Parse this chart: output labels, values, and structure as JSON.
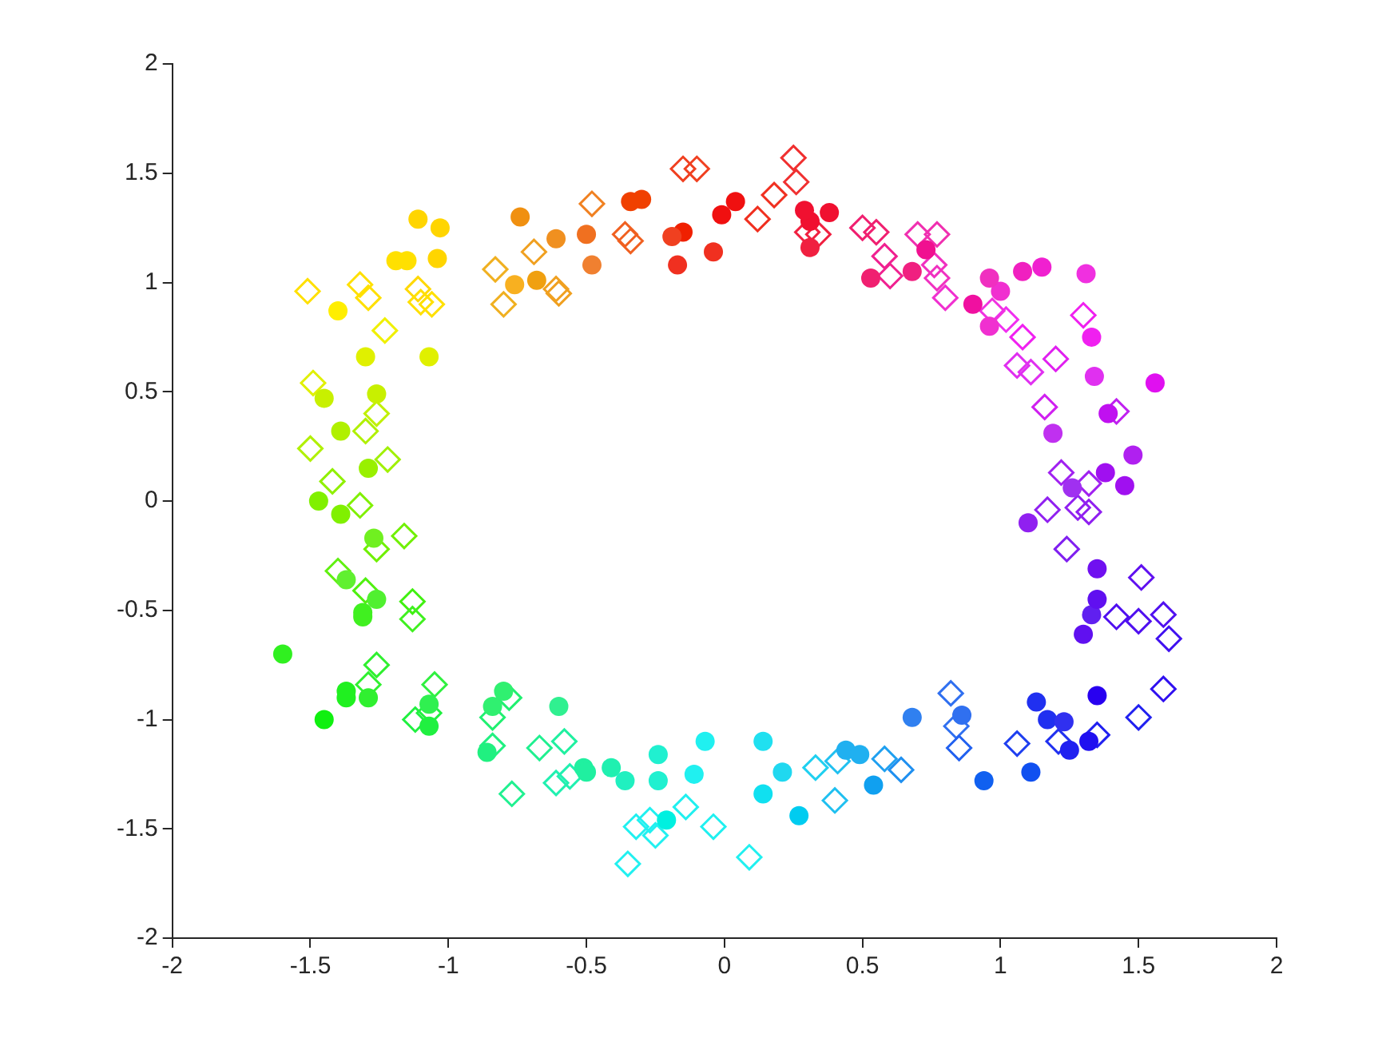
{
  "chart_data": {
    "type": "scatter",
    "xlim": [
      -2,
      2
    ],
    "ylim": [
      -2,
      2
    ],
    "xticks": [
      -2,
      -1.5,
      -1,
      -0.5,
      0,
      0.5,
      1,
      1.5,
      2
    ],
    "yticks": [
      -2,
      -1.5,
      -1,
      -0.5,
      0,
      0.5,
      1,
      1.5,
      2
    ],
    "grid": false,
    "legend": false,
    "series": [
      {
        "marker": "circle",
        "x": [
          -1.11,
          -1.03,
          -1.19,
          -1.15,
          -1.04,
          -1.4,
          -1.3,
          -1.07,
          -1.45,
          -1.26,
          -1.39,
          -1.29,
          -1.47,
          -1.39,
          -1.27,
          -1.37,
          -1.26,
          -1.31,
          -1.31,
          -1.6,
          -1.37,
          -1.37,
          -1.29,
          -1.45,
          -1.07,
          -1.07,
          -0.84,
          -0.8,
          -0.86,
          -0.6,
          -0.51,
          -0.5,
          -0.41,
          -0.36,
          -0.24,
          -0.24,
          -0.07,
          -0.11,
          -0.21,
          0.14,
          0.21,
          0.14,
          0.27,
          0.44,
          0.49,
          0.54,
          0.68,
          0.86,
          0.94,
          1.11,
          1.13,
          1.17,
          1.23,
          1.25,
          1.32,
          1.35,
          1.3,
          1.33,
          1.35,
          1.35,
          1.1,
          1.26,
          1.45,
          1.38,
          1.48,
          1.19,
          1.39,
          1.56,
          1.34,
          1.33,
          1.31,
          1.15,
          1.08,
          0.96,
          1.0,
          0.96,
          0.9,
          0.73,
          0.68,
          0.53,
          0.31,
          0.31,
          0.29,
          0.38,
          0.04,
          -0.01,
          -0.04,
          -0.15,
          -0.19,
          -0.17,
          -0.34,
          -0.3,
          -0.48,
          -0.5,
          -0.61,
          -0.74,
          -0.76,
          -0.68
        ],
        "values": [
          1.29,
          1.25,
          1.1,
          1.1,
          1.11,
          0.87,
          0.66,
          0.66,
          0.47,
          0.49,
          0.32,
          0.15,
          0.0,
          -0.06,
          -0.17,
          -0.36,
          -0.45,
          -0.51,
          -0.53,
          -0.7,
          -0.87,
          -0.9,
          -0.9,
          -1.0,
          -0.93,
          -1.03,
          -0.94,
          -0.87,
          -1.15,
          -0.94,
          -1.22,
          -1.24,
          -1.22,
          -1.28,
          -1.16,
          -1.28,
          -1.1,
          -1.25,
          -1.46,
          -1.1,
          -1.24,
          -1.34,
          -1.44,
          -1.14,
          -1.16,
          -1.3,
          -0.99,
          -0.98,
          -1.28,
          -1.24,
          -0.92,
          -1.0,
          -1.01,
          -1.14,
          -1.1,
          -0.89,
          -0.61,
          -0.52,
          -0.45,
          -0.31,
          -0.1,
          0.06,
          0.07,
          0.13,
          0.21,
          0.31,
          0.4,
          0.54,
          0.57,
          0.75,
          1.04,
          1.07,
          1.05,
          0.8,
          0.96,
          1.02,
          0.9,
          1.15,
          1.05,
          1.02,
          1.16,
          1.28,
          1.33,
          1.32,
          1.37,
          1.31,
          1.14,
          1.23,
          1.21,
          1.08,
          1.37,
          1.38,
          1.08,
          1.22,
          1.2,
          1.3,
          0.99,
          1.01
        ],
        "colors": [
          "#ffd500",
          "#ffd500",
          "#ffe000",
          "#ffe000",
          "#ffd500",
          "#ffee00",
          "#e0f000",
          "#e0f000",
          "#c8f000",
          "#c8f000",
          "#b0f000",
          "#99f000",
          "#80f000",
          "#80f000",
          "#70f020",
          "#60f030",
          "#50f030",
          "#40f020",
          "#40f020",
          "#30f020",
          "#20f020",
          "#20f020",
          "#30f030",
          "#10f010",
          "#30f050",
          "#20f040",
          "#30f070",
          "#30f070",
          "#20f080",
          "#30f090",
          "#20f0a0",
          "#20f0a0",
          "#20f0b0",
          "#20f0c0",
          "#20f0d0",
          "#20f0d0",
          "#20f0f0",
          "#20f0f0",
          "#00f0e0",
          "#20e0f0",
          "#20d8f0",
          "#10e0f0",
          "#00ccf0",
          "#20b0f0",
          "#20b0f0",
          "#10a0f0",
          "#3080f0",
          "#3070f0",
          "#1060f0",
          "#1050f0",
          "#2030f0",
          "#2030f0",
          "#3030f0",
          "#2020f0",
          "#2010f0",
          "#2800f0",
          "#6010f0",
          "#6020f0",
          "#6010f0",
          "#7010f0",
          "#9020f0",
          "#a030f0",
          "#a010f0",
          "#a010f0",
          "#b020f0",
          "#c030f0",
          "#c010f0",
          "#e010f0",
          "#e030f0",
          "#f020f0",
          "#f030e0",
          "#f020d0",
          "#f020c0",
          "#f030d0",
          "#f030d0",
          "#f030c0",
          "#f010a0",
          "#f01090",
          "#f02080",
          "#f02070",
          "#f02040",
          "#f01030",
          "#f01030",
          "#f01030",
          "#f01010",
          "#f01010",
          "#f03020",
          "#f02000",
          "#f04020",
          "#f03020",
          "#f04000",
          "#f04000",
          "#f08030",
          "#f07020",
          "#f09020",
          "#f09010",
          "#f8b020",
          "#f0a010"
        ]
      },
      {
        "marker": "diamond",
        "x": [
          -1.51,
          -1.32,
          -1.29,
          -1.11,
          -1.1,
          -1.06,
          -1.23,
          -1.49,
          -1.26,
          -1.3,
          -1.5,
          -1.22,
          -1.42,
          -1.32,
          -1.16,
          -1.26,
          -1.4,
          -1.3,
          -1.13,
          -1.13,
          -1.26,
          -1.29,
          -1.05,
          -1.12,
          -1.07,
          -0.78,
          -0.84,
          -0.84,
          -0.67,
          -0.58,
          -0.77,
          -0.61,
          -0.56,
          -0.14,
          -0.04,
          -0.32,
          -0.27,
          -0.25,
          -0.35,
          0.09,
          0.33,
          0.41,
          0.4,
          0.58,
          0.64,
          0.82,
          0.84,
          0.85,
          1.06,
          1.21,
          1.35,
          1.5,
          1.59,
          1.61,
          1.59,
          1.5,
          1.42,
          1.51,
          1.24,
          1.17,
          1.28,
          1.32,
          1.22,
          1.32,
          1.42,
          1.16,
          1.2,
          1.06,
          1.11,
          1.3,
          1.08,
          1.02,
          0.97,
          0.8,
          0.77,
          0.76,
          0.7,
          0.77,
          0.58,
          0.6,
          0.5,
          0.55,
          0.34,
          0.3,
          0.25,
          0.26,
          0.12,
          0.18,
          -0.1,
          -0.15,
          -0.34,
          -0.36,
          -0.48,
          -0.6,
          -0.61,
          -0.69,
          -0.8,
          -0.83
        ],
        "values": [
          0.96,
          0.99,
          0.93,
          0.97,
          0.91,
          0.9,
          0.78,
          0.54,
          0.4,
          0.32,
          0.24,
          0.19,
          0.09,
          -0.02,
          -0.16,
          -0.22,
          -0.32,
          -0.41,
          -0.46,
          -0.54,
          -0.75,
          -0.84,
          -0.84,
          -1.0,
          -0.97,
          -0.9,
          -0.99,
          -1.12,
          -1.13,
          -1.1,
          -1.34,
          -1.29,
          -1.26,
          -1.4,
          -1.49,
          -1.49,
          -1.46,
          -1.53,
          -1.66,
          -1.63,
          -1.22,
          -1.19,
          -1.37,
          -1.18,
          -1.23,
          -0.88,
          -1.03,
          -1.13,
          -1.11,
          -1.1,
          -1.07,
          -0.99,
          -0.86,
          -0.63,
          -0.52,
          -0.55,
          -0.53,
          -0.35,
          -0.22,
          -0.04,
          -0.03,
          -0.05,
          0.13,
          0.08,
          0.41,
          0.43,
          0.65,
          0.62,
          0.59,
          0.85,
          0.75,
          0.83,
          0.87,
          0.93,
          1.02,
          1.08,
          1.22,
          1.22,
          1.12,
          1.03,
          1.25,
          1.23,
          1.22,
          1.23,
          1.57,
          1.46,
          1.29,
          1.4,
          1.52,
          1.52,
          1.19,
          1.22,
          1.36,
          0.95,
          0.97,
          1.14,
          0.9,
          1.06
        ],
        "colors": [
          "#ffe000",
          "#ffe000",
          "#ffe000",
          "#ffd800",
          "#ffe000",
          "#ffe000",
          "#f0f000",
          "#e0f000",
          "#c0f000",
          "#b0f000",
          "#b0f000",
          "#a0f000",
          "#90f000",
          "#80f000",
          "#70f000",
          "#70f000",
          "#60f010",
          "#50f010",
          "#40f010",
          "#40f020",
          "#30f030",
          "#30f030",
          "#30f040",
          "#20f040",
          "#20f040",
          "#20f070",
          "#20f070",
          "#20f080",
          "#20f090",
          "#20f0a0",
          "#20f090",
          "#20f0b0",
          "#20f0b0",
          "#20f0f0",
          "#20f0f0",
          "#20f0f0",
          "#20f0f0",
          "#20f0f0",
          "#20f0f0",
          "#20f0f0",
          "#20d0f0",
          "#20c0f0",
          "#20c0f0",
          "#20a0f0",
          "#2090f0",
          "#3070f0",
          "#3070f0",
          "#2060f0",
          "#2040f0",
          "#2030f0",
          "#2020f0",
          "#2020f0",
          "#3010f0",
          "#4010f0",
          "#5010f0",
          "#5010f0",
          "#5010f0",
          "#6010f0",
          "#8020f0",
          "#9020f0",
          "#9020f0",
          "#9020f0",
          "#a020f0",
          "#a020f0",
          "#c020f0",
          "#d020f0",
          "#e020f0",
          "#e030f0",
          "#e030f0",
          "#f020f0",
          "#f020f0",
          "#f030f0",
          "#f030e0",
          "#f030d0",
          "#f030c0",
          "#f030c0",
          "#f030b0",
          "#f030b0",
          "#f02090",
          "#f02090",
          "#f02070",
          "#f02070",
          "#f02040",
          "#f02040",
          "#f03030",
          "#f03030",
          "#f03020",
          "#f03020",
          "#f04020",
          "#f04020",
          "#f06020",
          "#f06020",
          "#f08020",
          "#f0a020",
          "#f0a020",
          "#f0a020",
          "#f0b020",
          "#f0b020"
        ]
      }
    ]
  }
}
